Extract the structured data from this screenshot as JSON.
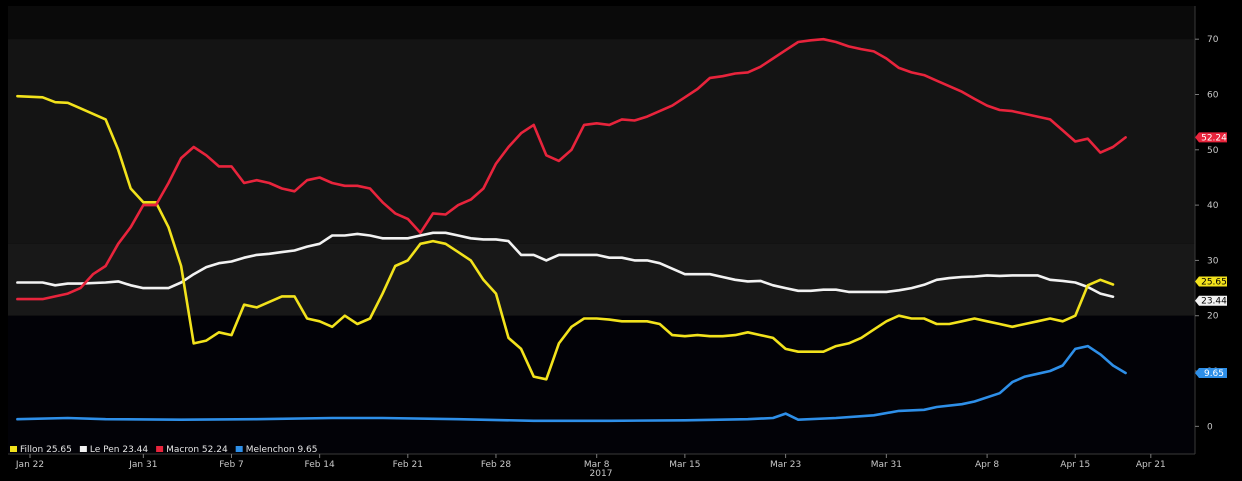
{
  "chart_data": {
    "type": "line",
    "xlabel": "2017",
    "ylabel": "",
    "xlim": [
      0,
      91
    ],
    "ylim": [
      -5,
      76
    ],
    "y_ticks": [
      0,
      10,
      20,
      30,
      40,
      50,
      60,
      70
    ],
    "x_ticks": [
      {
        "label": "Jan 22",
        "x": 0
      },
      {
        "label": "Jan 31",
        "x": 9
      },
      {
        "label": "Feb 7",
        "x": 16
      },
      {
        "label": "Feb 14",
        "x": 23
      },
      {
        "label": "Feb 21",
        "x": 30
      },
      {
        "label": "Feb 28",
        "x": 37
      },
      {
        "label": "Mar 8",
        "x": 45
      },
      {
        "label": "Mar 15",
        "x": 52
      },
      {
        "label": "Mar 23",
        "x": 60
      },
      {
        "label": "Mar 31",
        "x": 68
      },
      {
        "label": "Apr 8",
        "x": 76
      },
      {
        "label": "Apr 15",
        "x": 83
      },
      {
        "label": "Apr 21",
        "x": 89
      }
    ],
    "grid": false,
    "legend": "bottom-left",
    "series": [
      {
        "name": "Fillon",
        "color": "#f2e21c",
        "last_value": "25.65",
        "points": [
          [
            -1,
            59.7
          ],
          [
            1,
            59.5
          ],
          [
            2,
            58.6
          ],
          [
            3,
            58.5
          ],
          [
            4,
            57.5
          ],
          [
            6,
            55.5
          ],
          [
            7,
            50
          ],
          [
            8,
            43
          ],
          [
            9,
            40.5
          ],
          [
            10,
            40.5
          ],
          [
            11,
            36
          ],
          [
            12,
            29
          ],
          [
            13,
            15
          ],
          [
            14,
            15.5
          ],
          [
            15,
            17
          ],
          [
            16,
            16.5
          ],
          [
            17,
            22
          ],
          [
            18,
            21.5
          ],
          [
            19,
            22.5
          ],
          [
            20,
            23.5
          ],
          [
            21,
            23.5
          ],
          [
            22,
            19.5
          ],
          [
            23,
            19
          ],
          [
            24,
            18
          ],
          [
            25,
            20
          ],
          [
            26,
            18.5
          ],
          [
            27,
            19.5
          ],
          [
            28,
            24
          ],
          [
            29,
            29
          ],
          [
            30,
            30
          ],
          [
            31,
            33
          ],
          [
            32,
            33.5
          ],
          [
            33,
            33
          ],
          [
            34,
            31.5
          ],
          [
            35,
            30
          ],
          [
            36,
            26.5
          ],
          [
            37,
            24
          ],
          [
            38,
            16
          ],
          [
            39,
            14
          ],
          [
            40,
            9
          ],
          [
            41,
            8.5
          ],
          [
            42,
            15
          ],
          [
            43,
            18
          ],
          [
            44,
            19.5
          ],
          [
            45,
            19.5
          ],
          [
            46,
            19.3
          ],
          [
            47,
            19
          ],
          [
            48,
            19
          ],
          [
            49,
            19
          ],
          [
            50,
            18.5
          ],
          [
            51,
            16.5
          ],
          [
            52,
            16.3
          ],
          [
            53,
            16.5
          ],
          [
            54,
            16.3
          ],
          [
            55,
            16.3
          ],
          [
            56,
            16.5
          ],
          [
            57,
            17
          ],
          [
            58,
            16.5
          ],
          [
            59,
            16
          ],
          [
            60,
            14
          ],
          [
            61,
            13.5
          ],
          [
            62,
            13.5
          ],
          [
            63,
            13.5
          ],
          [
            64,
            14.5
          ],
          [
            65,
            15
          ],
          [
            66,
            16
          ],
          [
            67,
            17.5
          ],
          [
            68,
            19
          ],
          [
            69,
            20
          ],
          [
            70,
            19.5
          ],
          [
            71,
            19.5
          ],
          [
            72,
            18.5
          ],
          [
            73,
            18.5
          ],
          [
            74,
            19
          ],
          [
            75,
            19.5
          ],
          [
            76,
            19
          ],
          [
            77,
            18.5
          ],
          [
            78,
            18
          ],
          [
            79,
            18.5
          ],
          [
            80,
            19
          ],
          [
            81,
            19.5
          ],
          [
            82,
            19
          ],
          [
            83,
            20
          ],
          [
            84,
            25.5
          ],
          [
            85,
            26.5
          ],
          [
            86,
            25.65
          ]
        ]
      },
      {
        "name": "Le Pen",
        "color": "#f2f2f2",
        "last_value": "23.44",
        "points": [
          [
            -1,
            26
          ],
          [
            1,
            26
          ],
          [
            2,
            25.5
          ],
          [
            3,
            25.8
          ],
          [
            4,
            25.8
          ],
          [
            6,
            26
          ],
          [
            7,
            26.2
          ],
          [
            8,
            25.5
          ],
          [
            9,
            25
          ],
          [
            10,
            25
          ],
          [
            11,
            25
          ],
          [
            12,
            26
          ],
          [
            13,
            27.5
          ],
          [
            14,
            28.8
          ],
          [
            15,
            29.5
          ],
          [
            16,
            29.8
          ],
          [
            17,
            30.5
          ],
          [
            18,
            31
          ],
          [
            19,
            31.2
          ],
          [
            20,
            31.5
          ],
          [
            21,
            31.8
          ],
          [
            22,
            32.5
          ],
          [
            23,
            33
          ],
          [
            24,
            34.5
          ],
          [
            25,
            34.5
          ],
          [
            26,
            34.8
          ],
          [
            27,
            34.5
          ],
          [
            28,
            34
          ],
          [
            29,
            34
          ],
          [
            30,
            34
          ],
          [
            31,
            34.5
          ],
          [
            32,
            35
          ],
          [
            33,
            35
          ],
          [
            34,
            34.5
          ],
          [
            35,
            34
          ],
          [
            36,
            33.8
          ],
          [
            37,
            33.8
          ],
          [
            38,
            33.5
          ],
          [
            39,
            31
          ],
          [
            40,
            31
          ],
          [
            41,
            30
          ],
          [
            42,
            31
          ],
          [
            43,
            31
          ],
          [
            44,
            31
          ],
          [
            45,
            31
          ],
          [
            46,
            30.5
          ],
          [
            47,
            30.5
          ],
          [
            48,
            30
          ],
          [
            49,
            30
          ],
          [
            50,
            29.5
          ],
          [
            51,
            28.5
          ],
          [
            52,
            27.5
          ],
          [
            53,
            27.5
          ],
          [
            54,
            27.5
          ],
          [
            55,
            27
          ],
          [
            56,
            26.5
          ],
          [
            57,
            26.2
          ],
          [
            58,
            26.3
          ],
          [
            59,
            25.5
          ],
          [
            60,
            25
          ],
          [
            61,
            24.5
          ],
          [
            62,
            24.5
          ],
          [
            63,
            24.7
          ],
          [
            64,
            24.7
          ],
          [
            65,
            24.3
          ],
          [
            66,
            24.3
          ],
          [
            67,
            24.3
          ],
          [
            68,
            24.3
          ],
          [
            69,
            24.6
          ],
          [
            70,
            25
          ],
          [
            71,
            25.6
          ],
          [
            72,
            26.5
          ],
          [
            73,
            26.8
          ],
          [
            74,
            27
          ],
          [
            75,
            27.1
          ],
          [
            76,
            27.3
          ],
          [
            77,
            27.2
          ],
          [
            78,
            27.3
          ],
          [
            79,
            27.3
          ],
          [
            80,
            27.3
          ],
          [
            81,
            26.5
          ],
          [
            82,
            26.3
          ],
          [
            83,
            26
          ],
          [
            84,
            25.2
          ],
          [
            85,
            24
          ],
          [
            86,
            23.44
          ]
        ]
      },
      {
        "name": "Macron",
        "color": "#e8243c",
        "last_value": "52.24",
        "points": [
          [
            -1,
            23
          ],
          [
            1,
            23
          ],
          [
            2,
            23.5
          ],
          [
            3,
            24
          ],
          [
            4,
            25
          ],
          [
            5,
            27.5
          ],
          [
            6,
            29
          ],
          [
            7,
            33
          ],
          [
            8,
            36
          ],
          [
            9,
            40
          ],
          [
            10,
            40
          ],
          [
            11,
            44
          ],
          [
            12,
            48.5
          ],
          [
            13,
            50.5
          ],
          [
            14,
            49
          ],
          [
            15,
            47
          ],
          [
            16,
            47
          ],
          [
            17,
            44
          ],
          [
            18,
            44.5
          ],
          [
            19,
            44
          ],
          [
            20,
            43
          ],
          [
            21,
            42.5
          ],
          [
            22,
            44.5
          ],
          [
            23,
            45
          ],
          [
            24,
            44
          ],
          [
            25,
            43.5
          ],
          [
            26,
            43.5
          ],
          [
            27,
            43
          ],
          [
            28,
            40.5
          ],
          [
            29,
            38.5
          ],
          [
            30,
            37.5
          ],
          [
            31,
            35
          ],
          [
            32,
            38.5
          ],
          [
            33,
            38.3
          ],
          [
            34,
            40
          ],
          [
            35,
            41
          ],
          [
            36,
            43
          ],
          [
            37,
            47.5
          ],
          [
            38,
            50.5
          ],
          [
            39,
            53
          ],
          [
            40,
            54.5
          ],
          [
            41,
            49
          ],
          [
            42,
            48
          ],
          [
            43,
            50
          ],
          [
            44,
            54.5
          ],
          [
            45,
            54.8
          ],
          [
            46,
            54.5
          ],
          [
            47,
            55.5
          ],
          [
            48,
            55.3
          ],
          [
            49,
            56
          ],
          [
            50,
            57
          ],
          [
            51,
            58
          ],
          [
            52,
            59.5
          ],
          [
            53,
            61
          ],
          [
            54,
            63
          ],
          [
            55,
            63.3
          ],
          [
            56,
            63.8
          ],
          [
            57,
            64
          ],
          [
            58,
            65
          ],
          [
            59,
            66.5
          ],
          [
            60,
            68
          ],
          [
            61,
            69.5
          ],
          [
            62,
            69.8
          ],
          [
            63,
            70
          ],
          [
            64,
            69.5
          ],
          [
            65,
            68.7
          ],
          [
            66,
            68.2
          ],
          [
            67,
            67.8
          ],
          [
            68,
            66.5
          ],
          [
            69,
            64.8
          ],
          [
            70,
            64
          ],
          [
            71,
            63.5
          ],
          [
            72,
            62.5
          ],
          [
            73,
            61.5
          ],
          [
            74,
            60.5
          ],
          [
            75,
            59.2
          ],
          [
            76,
            58
          ],
          [
            77,
            57.2
          ],
          [
            78,
            57
          ],
          [
            79,
            56.5
          ],
          [
            80,
            56
          ],
          [
            81,
            55.5
          ],
          [
            82,
            53.5
          ],
          [
            83,
            51.5
          ],
          [
            84,
            52
          ],
          [
            85,
            49.5
          ],
          [
            86,
            50.5
          ],
          [
            87,
            52.24
          ]
        ]
      },
      {
        "name": "Melenchon",
        "color": "#2e8fe8",
        "last_value": "9.65",
        "points": [
          [
            -1,
            1.3
          ],
          [
            3,
            1.5
          ],
          [
            6,
            1.3
          ],
          [
            12,
            1.2
          ],
          [
            18,
            1.3
          ],
          [
            24,
            1.5
          ],
          [
            28,
            1.5
          ],
          [
            34,
            1.3
          ],
          [
            40,
            1
          ],
          [
            46,
            1
          ],
          [
            52,
            1.1
          ],
          [
            57,
            1.3
          ],
          [
            59,
            1.5
          ],
          [
            60,
            2.3
          ],
          [
            61,
            1.2
          ],
          [
            64,
            1.5
          ],
          [
            67,
            2
          ],
          [
            69,
            2.8
          ],
          [
            71,
            3
          ],
          [
            72,
            3.5
          ],
          [
            74,
            4
          ],
          [
            75,
            4.5
          ],
          [
            77,
            6
          ],
          [
            78,
            8
          ],
          [
            79,
            9
          ],
          [
            80,
            9.5
          ],
          [
            81,
            10
          ],
          [
            82,
            11
          ],
          [
            83,
            14
          ],
          [
            84,
            14.5
          ],
          [
            85,
            13
          ],
          [
            86,
            11
          ],
          [
            87,
            9.65
          ]
        ]
      }
    ]
  }
}
